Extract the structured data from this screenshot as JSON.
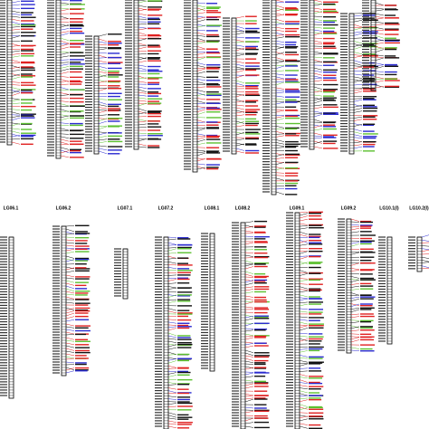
{
  "linkage_groups": {
    "labels": [
      "LG06.1",
      "LG06.2",
      "LG07.1",
      "LG07.2",
      "LG08.1",
      "LG08.2",
      "LG09.1",
      "LG09.2",
      "LG10.1(I)",
      "LG10.2(I)"
    ]
  }
}
